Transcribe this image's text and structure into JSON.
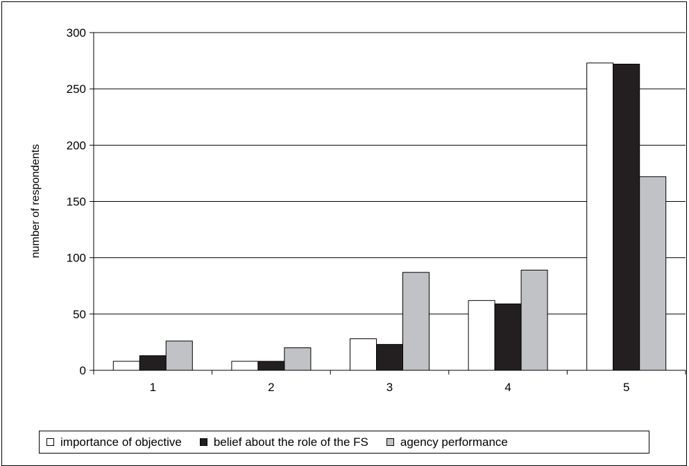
{
  "chart_data": {
    "type": "bar",
    "title": "",
    "xlabel": "",
    "ylabel": "number of respondents",
    "categories": [
      "1",
      "2",
      "3",
      "4",
      "5"
    ],
    "ylim": [
      0,
      300
    ],
    "yticks": [
      "0",
      "50",
      "100",
      "150",
      "200",
      "250",
      "300"
    ],
    "grid": true,
    "legend_position": "bottom",
    "series": [
      {
        "name": "importance of objective",
        "color": "#ffffff",
        "values": [
          8,
          8,
          28,
          62,
          273
        ]
      },
      {
        "name": "belief about the role of the FS",
        "color": "#231f20",
        "values": [
          13,
          8,
          23,
          59,
          272
        ]
      },
      {
        "name": "agency performance",
        "color": "#c0c2c6",
        "values": [
          26,
          20,
          87,
          89,
          172
        ]
      }
    ]
  }
}
